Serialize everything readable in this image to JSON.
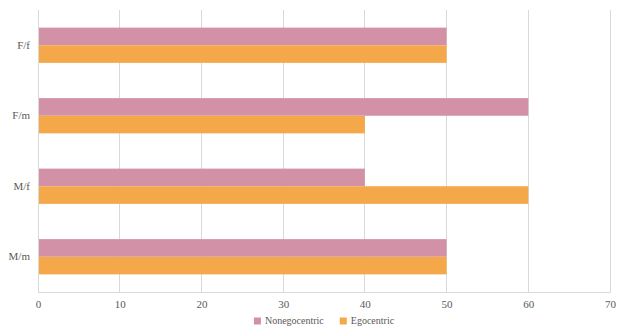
{
  "chart_data": {
    "type": "bar",
    "orientation": "horizontal",
    "categories": [
      "M/m",
      "M/f",
      "F/m",
      "F/f"
    ],
    "series": [
      {
        "name": "Nonegocentric",
        "color": "#d291a6",
        "values": [
          50,
          40,
          60,
          50
        ]
      },
      {
        "name": "Egocentric",
        "color": "#f4a84a",
        "values": [
          50,
          60,
          40,
          50
        ]
      }
    ],
    "xlim": [
      0,
      70
    ],
    "xticks": [
      0,
      10,
      20,
      30,
      40,
      50,
      60,
      70
    ],
    "grid": true,
    "legend": "bottom"
  }
}
